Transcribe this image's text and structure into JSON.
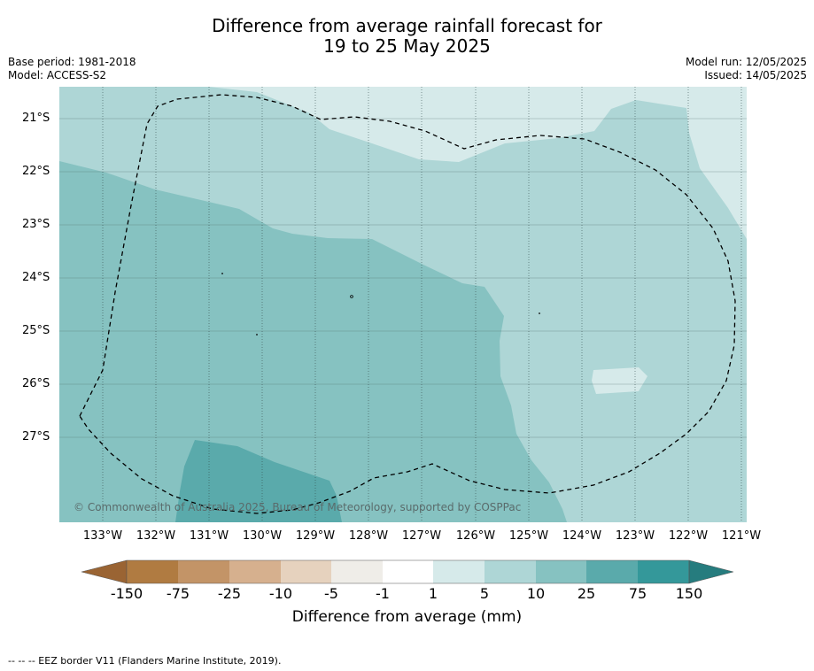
{
  "title_line1": "Difference from average rainfall forecast for",
  "title_line2": "19 to 25 May 2025",
  "base_period": "Base period: 1981-2018",
  "model": "Model: ACCESS-S2",
  "model_run": "Model run: 12/05/2025",
  "issued": "Issued: 14/05/2025",
  "lat_labels": [
    "21°S",
    "22°S",
    "23°S",
    "24°S",
    "25°S",
    "26°S",
    "27°S"
  ],
  "lon_labels": [
    "133°W",
    "132°W",
    "131°W",
    "130°W",
    "129°W",
    "128°W",
    "127°W",
    "126°W",
    "125°W",
    "124°W",
    "123°W",
    "122°W",
    "121°W"
  ],
  "copyright": "© Commonwealth of Australia 2025, Bureau of Meteorology, supported by COSPPac",
  "colorbar": {
    "labels": [
      "-150",
      "-75",
      "-25",
      "-10",
      "-5",
      "-1",
      "1",
      "5",
      "10",
      "25",
      "75",
      "150"
    ],
    "colors": [
      "#9a6433",
      "#b07b41",
      "#c39467",
      "#d6b08e",
      "#e6d2be",
      "#efede8",
      "#ffffff",
      "#d6eaea",
      "#aed6d6",
      "#86c2c1",
      "#5aaaab",
      "#34989a",
      "#267c7e"
    ],
    "title": "Difference from average (mm)"
  },
  "legend_note": "--  --  -- EEZ border V11 (Flanders Marine Institute, 2019)."
}
